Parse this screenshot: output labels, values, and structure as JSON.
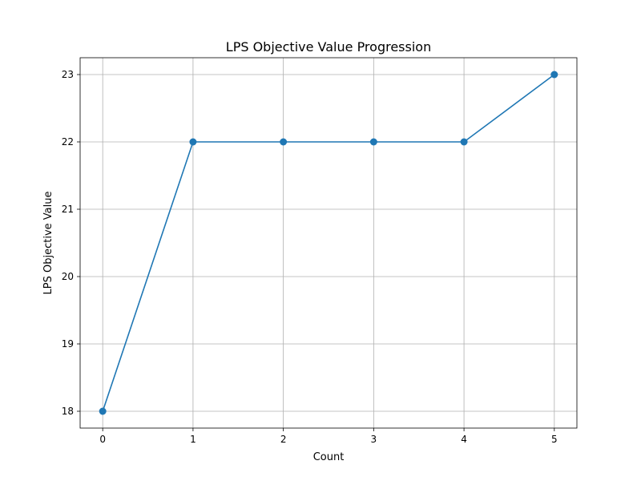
{
  "chart_data": {
    "type": "line",
    "title": "LPS Objective Value Progression",
    "xlabel": "Count",
    "ylabel": "LPS Objective Value",
    "x": [
      0,
      1,
      2,
      3,
      4,
      5
    ],
    "series": [
      {
        "values": [
          18,
          22,
          22,
          22,
          22,
          23
        ],
        "color": "#1f77b4",
        "marker": "circle"
      }
    ],
    "xlim": [
      -0.25,
      5.25
    ],
    "ylim": [
      17.75,
      23.25
    ],
    "xticks": [
      "0",
      "1",
      "2",
      "3",
      "4",
      "5"
    ],
    "yticks": [
      "18",
      "19",
      "20",
      "21",
      "22",
      "23"
    ],
    "grid": true,
    "legend": "none"
  }
}
